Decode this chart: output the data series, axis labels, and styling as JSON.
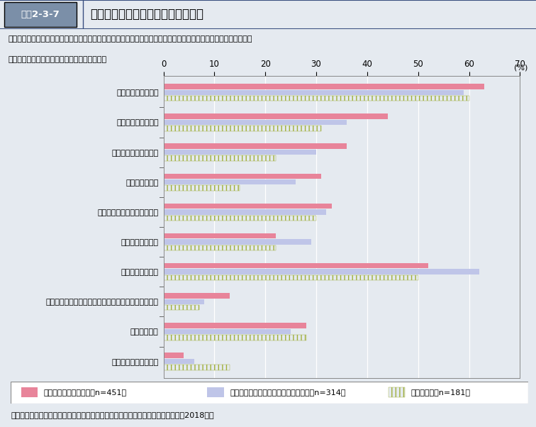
{
  "title_label": "図表2-3-7",
  "title_box_color": "#7B8FA8",
  "title_bg_color": "#FFFFFF",
  "title_text": "どのような相談機関に相談したいか",
  "question_line1": "【設問】（「相談機関に相談したい」とお答えの方）現在の状況を相談機関に相談するとすれば、どのような機関な",
  "question_line2": "　ら相談したいと思いますか。（いくつでも）",
  "unit": "(%)",
  "source": "資料：厚生労働省政策統括官付政策評価官室委託「自立支援に関する意識調査」（2018年）",
  "categories": [
    "親身に聴いてくれる",
    "医学的助言をくれる",
    "心理学の専門家がいる",
    "精神科医がいる",
    "同じ悩みを持つ人と出会える",
    "匿名で相談できる",
    "無料で相談できる",
    "公的機関の人や医療の専門家ではない民間団体である",
    "自宅から近い",
    "あてはまるものはない"
  ],
  "series": [
    {
      "name": "障害や病気を有する者（n=451）",
      "color": "#E8849A",
      "hatch": "",
      "values": [
        63,
        44,
        36,
        31,
        33,
        22,
        52,
        13,
        28,
        4
      ]
    },
    {
      "name": "身近に障害や病気を有する者がいる者（n=314）",
      "color": "#BFC5E8",
      "hatch": "",
      "values": [
        59,
        36,
        30,
        26,
        32,
        29,
        62,
        8,
        25,
        6
      ]
    },
    {
      "name": "その他の者（n=181）",
      "color": "#A0AF3A",
      "hatch": "|||",
      "values": [
        60,
        31,
        22,
        15,
        30,
        22,
        50,
        7,
        28,
        13
      ]
    }
  ],
  "xlim": [
    0,
    70
  ],
  "xticks": [
    0,
    10,
    20,
    30,
    40,
    50,
    60,
    70
  ],
  "bg_color": "#E5EAF0",
  "chart_bg": "#E5EAF0",
  "bar_height": 0.2,
  "legend_labels": [
    "障害や病気を有する者（n=451）",
    "身近に障害や病気を有する者がいる者（n=314）",
    "その他の者（n=181）"
  ],
  "legend_colors": [
    "#E8849A",
    "#BFC5E8",
    "#A0AF3A"
  ],
  "legend_hatches": [
    "",
    "",
    "|||"
  ]
}
